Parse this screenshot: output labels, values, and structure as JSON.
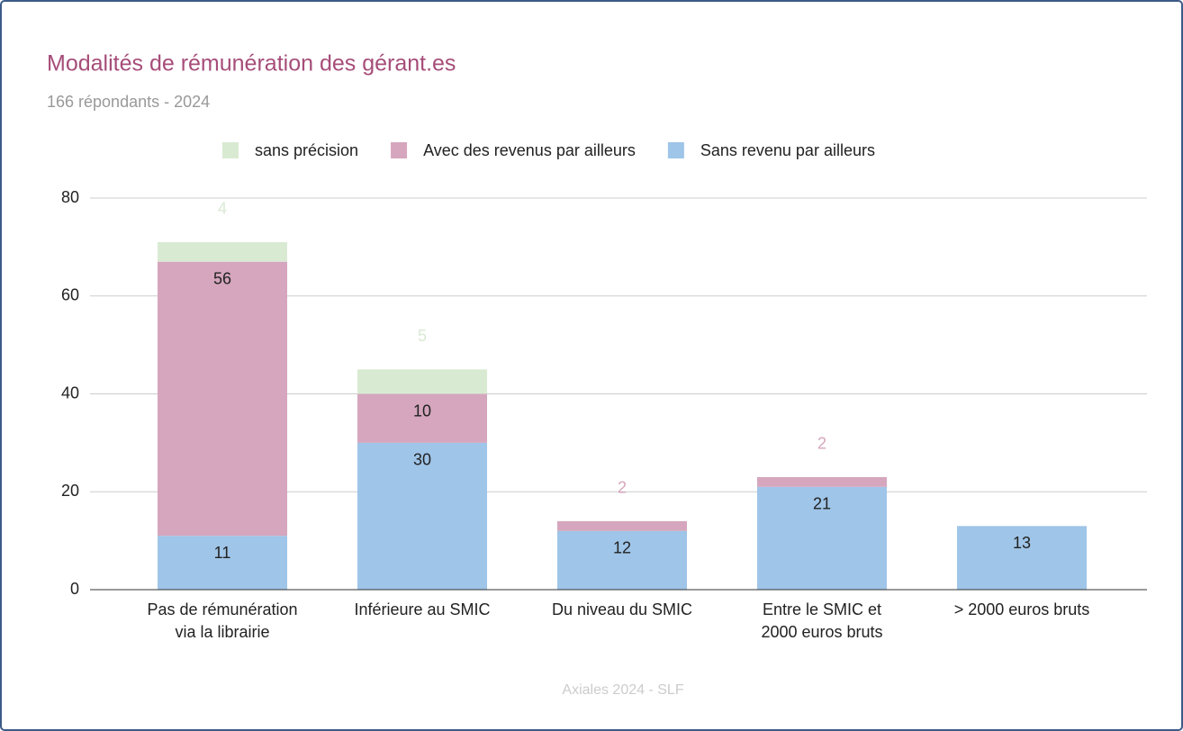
{
  "chart_data": {
    "type": "stacked_bar",
    "title": "Modalités de rémunération des gérant.es",
    "subtitle": "166 répondants - 2024",
    "footer": "Axiales 2024 - SLF",
    "categories": [
      "Pas de rémunération\nvia la librairie",
      "Inférieure au SMIC",
      "Du niveau du SMIC",
      "Entre le SMIC et\n2000 euros bruts",
      "> 2000 euros bruts"
    ],
    "series": [
      {
        "name": "Sans revenu par ailleurs",
        "color": "#9fc5e8",
        "values": [
          11,
          30,
          12,
          21,
          13
        ]
      },
      {
        "name": "Avec des revenus par ailleurs",
        "color": "#d5a6bd",
        "values": [
          56,
          10,
          2,
          2,
          null
        ]
      },
      {
        "name": "sans précision",
        "color": "#d9ead3",
        "values": [
          4,
          5,
          null,
          null,
          null
        ]
      }
    ],
    "ylim": [
      0,
      80
    ],
    "yticks": [
      0,
      20,
      40,
      60,
      80
    ],
    "grid": true
  }
}
